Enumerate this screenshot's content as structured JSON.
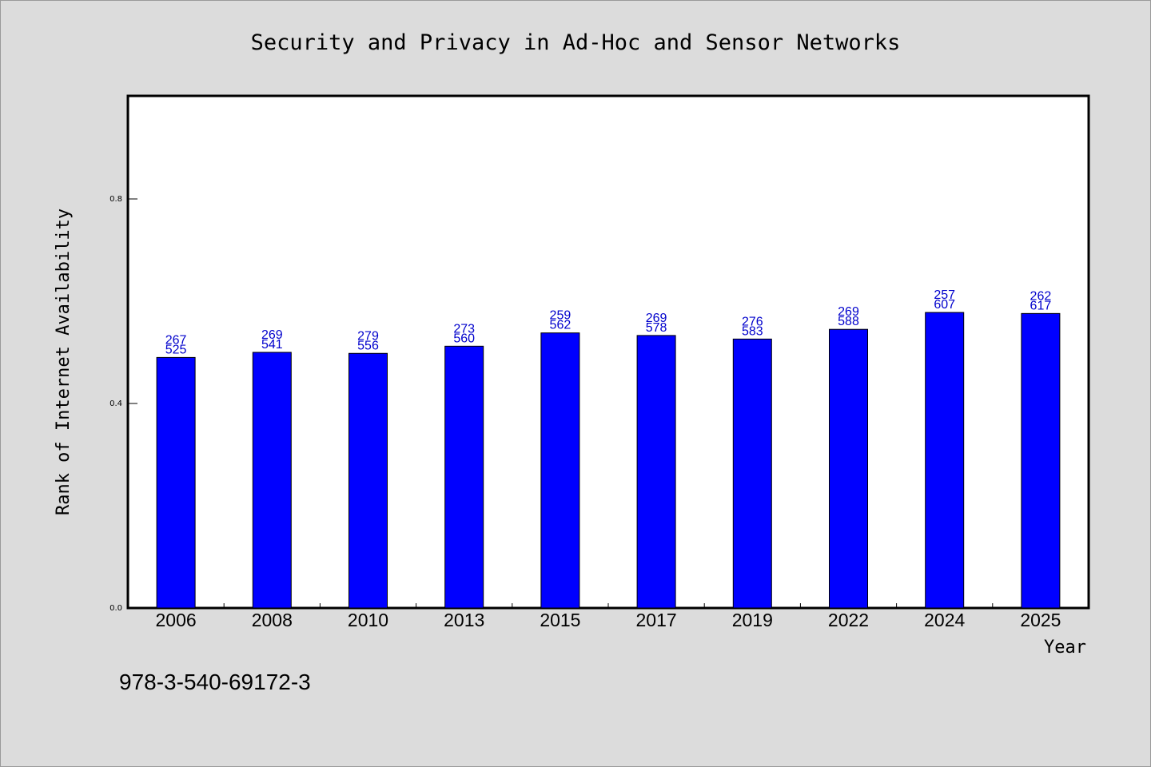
{
  "chart_data": {
    "type": "bar",
    "title": "Security and Privacy in Ad-Hoc and Sensor Networks",
    "xlabel": "Year",
    "ylabel": "Rank of Internet Availability",
    "categories": [
      "2006",
      "2008",
      "2010",
      "2013",
      "2015",
      "2017",
      "2019",
      "2022",
      "2024",
      "2025"
    ],
    "values": [
      0.49,
      0.5,
      0.498,
      0.512,
      0.538,
      0.533,
      0.526,
      0.545,
      0.578,
      0.576
    ],
    "labels_top": [
      "267",
      "269",
      "279",
      "273",
      "259",
      "269",
      "276",
      "269",
      "257",
      "262"
    ],
    "labels_bottom": [
      "525",
      "541",
      "556",
      "560",
      "562",
      "578",
      "583",
      "588",
      "607",
      "617"
    ],
    "ylim": [
      0,
      1.0
    ],
    "yticks": [
      0.0,
      0.4,
      0.8
    ],
    "ytick_labels": [
      "0.0",
      "0.4",
      "0.8"
    ],
    "bar_color": "#0000ff",
    "label_color": "#0000cc",
    "grid": false,
    "legend": "none"
  },
  "footer_text": "978-3-540-69172-3"
}
